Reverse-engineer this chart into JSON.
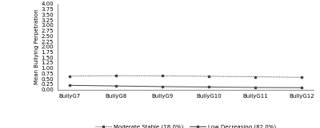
{
  "x_labels": [
    "BullyG7",
    "BullyG8",
    "BullyG9",
    "BullyG10",
    "BullyG11",
    "BullyG12"
  ],
  "moderate_stable": [
    0.63,
    0.65,
    0.64,
    0.62,
    0.6,
    0.57
  ],
  "low_decreasing": [
    0.2,
    0.17,
    0.14,
    0.12,
    0.1,
    0.09
  ],
  "ylim": [
    0.0,
    4.0
  ],
  "yticks": [
    0.0,
    0.25,
    0.5,
    0.75,
    1.0,
    1.25,
    1.5,
    1.75,
    2.0,
    2.25,
    2.5,
    2.75,
    3.0,
    3.25,
    3.5,
    3.75,
    4.0
  ],
  "ylabel": "Mean Bullying Perpetration",
  "legend_moderate": "Moderate Stable (18.0%)",
  "legend_low": "Low Decreasing (82.0%)",
  "line_color": "#444444",
  "background_color": "#ffffff",
  "axis_fontsize": 5.0,
  "tick_fontsize": 5.0,
  "legend_fontsize": 5.0
}
